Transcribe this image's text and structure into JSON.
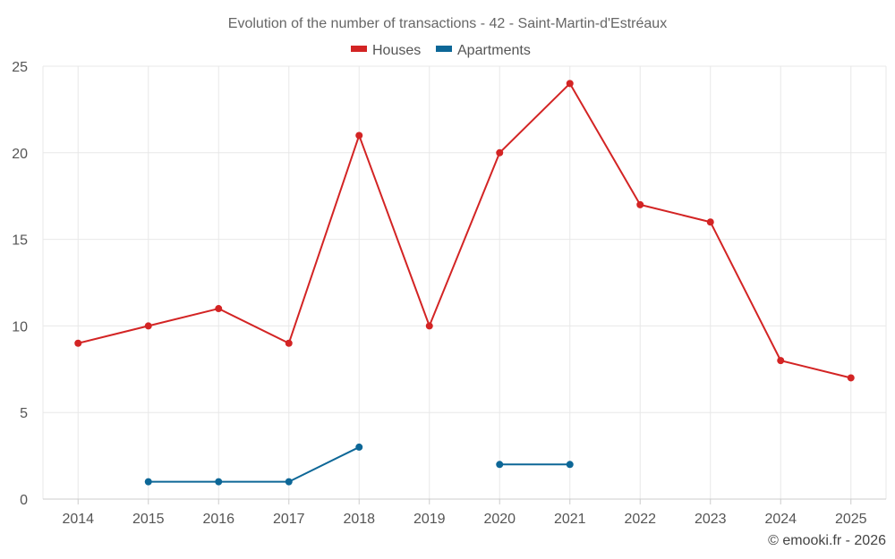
{
  "chart_data": {
    "type": "line",
    "title": "Evolution of the number of transactions - 42 - Saint-Martin-d'Estréaux",
    "categories": [
      "2014",
      "2015",
      "2016",
      "2017",
      "2018",
      "2019",
      "2020",
      "2021",
      "2022",
      "2023",
      "2024",
      "2025"
    ],
    "yticks": [
      "0",
      "5",
      "10",
      "15",
      "20",
      "25"
    ],
    "ylim": [
      0,
      25
    ],
    "grid": true,
    "legend_position": "top-center",
    "series": [
      {
        "name": "Houses",
        "color": "#d32424",
        "values": [
          9,
          10,
          11,
          9,
          21,
          10,
          20,
          24,
          17,
          16,
          8,
          7
        ]
      },
      {
        "name": "Apartments",
        "color": "#0d6797",
        "values": [
          null,
          1,
          1,
          1,
          3,
          null,
          2,
          2,
          null,
          null,
          null,
          null
        ]
      }
    ]
  },
  "credit": "© emooki.fr - 2026"
}
